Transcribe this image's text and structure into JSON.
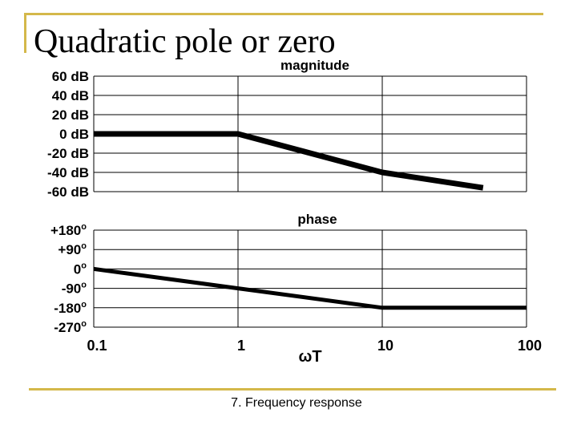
{
  "slide": {
    "title": "Quadratic pole or zero",
    "footer": "7. Frequency response",
    "rule_color": "#d4b84a"
  },
  "chart_data": [
    {
      "type": "line",
      "title": "magnitude",
      "x_scale": "log",
      "xlim": [
        0.1,
        100
      ],
      "ylim": [
        -60,
        60
      ],
      "y_ticks": [
        60,
        40,
        20,
        0,
        -20,
        -40,
        -60
      ],
      "y_tick_labels": [
        "60 dB",
        "40 dB",
        "20 dB",
        "0 dB",
        "-20 dB",
        "-40 dB",
        "-60 dB"
      ],
      "grid": true,
      "series": [
        {
          "x": [
            0.1,
            1,
            10,
            50
          ],
          "y": [
            0,
            0,
            -40,
            -56
          ]
        }
      ]
    },
    {
      "type": "line",
      "title": "phase",
      "x_scale": "log",
      "xlim": [
        0.1,
        100
      ],
      "ylim": [
        -270,
        180
      ],
      "y_ticks": [
        180,
        90,
        0,
        -90,
        -180,
        -270
      ],
      "y_tick_labels": [
        "+180",
        "+90",
        "0",
        "-90",
        "-180",
        "-270"
      ],
      "y_tick_superscript": "o",
      "grid": true,
      "x_ticks": [
        0.1,
        1,
        10,
        100
      ],
      "x_tick_labels": [
        "0.1",
        "1",
        "10",
        "100"
      ],
      "xlabel": "ωT",
      "series": [
        {
          "x": [
            0.1,
            1,
            10,
            100
          ],
          "y": [
            0,
            -90,
            -180,
            -180
          ]
        }
      ]
    }
  ]
}
